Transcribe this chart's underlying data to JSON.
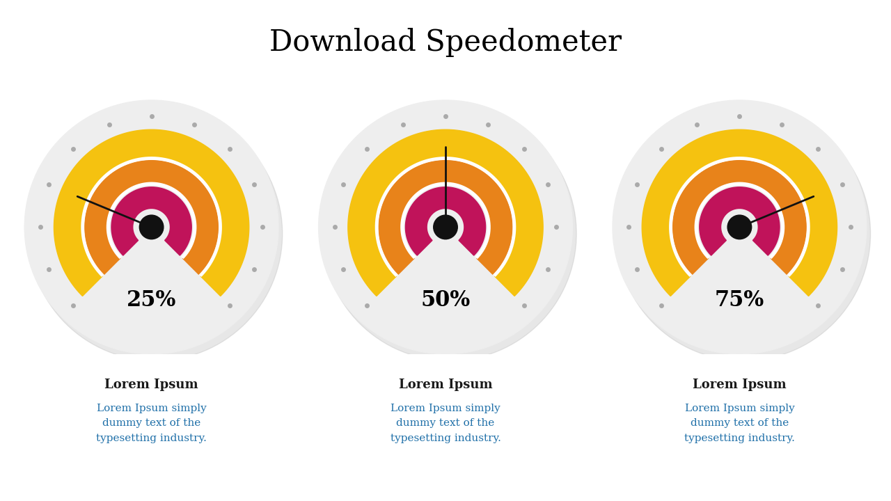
{
  "title": "Download Speedometer",
  "title_fontsize": 30,
  "title_font": "serif",
  "speedometers": [
    {
      "percent": 25,
      "label": "25%"
    },
    {
      "percent": 50,
      "label": "50%"
    },
    {
      "percent": 75,
      "label": "75%"
    }
  ],
  "yellow": "#F5C210",
  "orange": "#E8831A",
  "pink_red": "#C0135A",
  "background_circle": "#EEEEEE",
  "dot_color": "#AAAAAA",
  "needle_color": "#111111",
  "hub_color": "#111111",
  "label_title": "Lorem Ipsum",
  "label_title_fontsize": 13,
  "label_title_color": "#1A1A1A",
  "label_body": "Lorem Ipsum simply\ndummy text of the\ntypesetting industry.",
  "label_body_fontsize": 11,
  "label_body_color": "#1E6FA8"
}
